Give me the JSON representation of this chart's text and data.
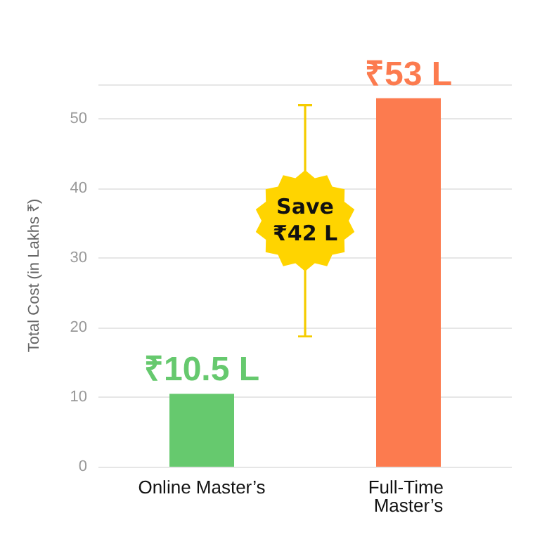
{
  "chart_data": {
    "type": "bar",
    "ylabel": "Total Cost (in Lakhs ₹)",
    "categories": [
      "Online Master’s",
      "Full-Time Master’s"
    ],
    "values": [
      10.5,
      53
    ],
    "colors": [
      "#66c96e",
      "#fc7b4f"
    ],
    "value_labels": [
      "₹10.5 L",
      "₹53 L"
    ],
    "ylim": [
      0,
      55
    ],
    "yticks": [
      0,
      10,
      20,
      30,
      40,
      50
    ],
    "grid": "y",
    "annotations": [
      "Save ₹42 L"
    ]
  }
}
